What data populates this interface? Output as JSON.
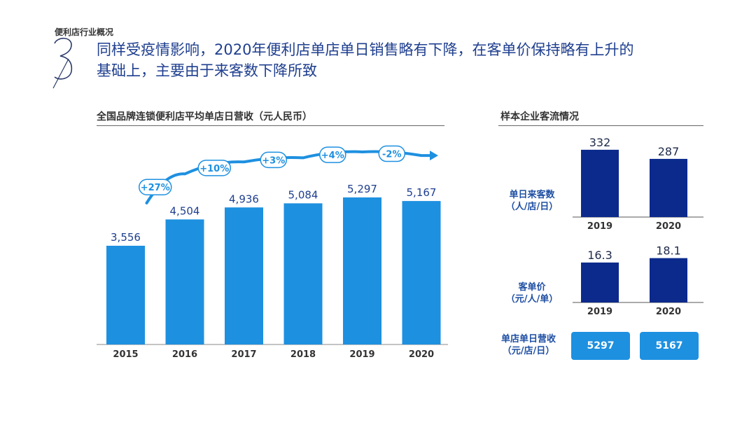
{
  "section_label": "便利店行业概况",
  "headline": {
    "line1": "同样受疫情影响，2020年便利店单店单日销售略有下降，在客单价保持略有上升的",
    "line2": "基础上，主要由于来客数下降所致"
  },
  "colors": {
    "bar_light": "#1e90e0",
    "bar_dark": "#0b2a8c",
    "label_blue": "#1f4fa3"
  },
  "chart_data": [
    {
      "type": "bar",
      "title": "全国品牌连锁便利店平均单店日营收（元人民币）",
      "categories": [
        "2015",
        "2016",
        "2017",
        "2018",
        "2019",
        "2020"
      ],
      "values": [
        3556,
        4504,
        4936,
        5084,
        5297,
        5167
      ],
      "value_labels": [
        "3,556",
        "4,504",
        "4,936",
        "5,084",
        "5,297",
        "5,167"
      ],
      "growth_labels": [
        "+27%",
        "+10%",
        "+3%",
        "+4%",
        "-2%"
      ],
      "ylim": [
        0,
        5800
      ],
      "xlabel": "",
      "ylabel": ""
    },
    {
      "type": "bar",
      "title": "样本企业客流情况",
      "panels": [
        {
          "label": [
            "单日来客数",
            "（人/店/日）"
          ],
          "categories": [
            "2019",
            "2020"
          ],
          "values": [
            332,
            287
          ],
          "value_labels": [
            "332",
            "287"
          ],
          "ylim": [
            0,
            380
          ]
        },
        {
          "label": [
            "客单价",
            "（元/人/单）"
          ],
          "categories": [
            "2019",
            "2020"
          ],
          "values": [
            16.3,
            18.1
          ],
          "value_labels": [
            "16.3",
            "18.1"
          ],
          "ylim": [
            0,
            20
          ]
        }
      ],
      "revenue_row": {
        "label": [
          "单店单日营收",
          "（元/店/日）"
        ],
        "values": [
          "5297",
          "5167"
        ]
      }
    }
  ]
}
